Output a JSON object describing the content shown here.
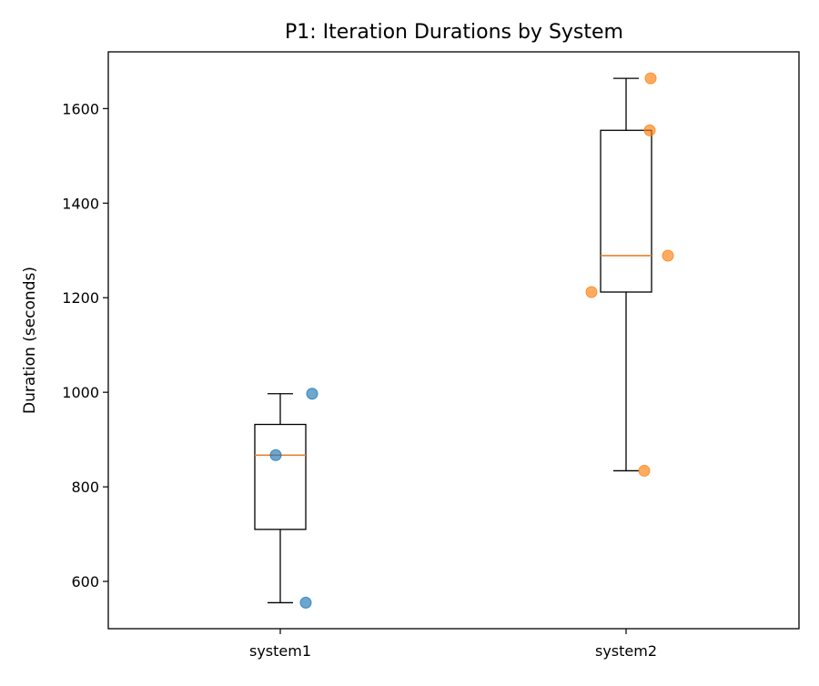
{
  "chart_data": {
    "type": "box",
    "title": "P1: Iteration Durations by System",
    "xlabel": "",
    "ylabel": "Duration (seconds)",
    "ylim": [
      500,
      1720
    ],
    "yticks": [
      600,
      800,
      1000,
      1200,
      1400,
      1600
    ],
    "categories": [
      "system1",
      "system2"
    ],
    "grid": false,
    "legend": "none",
    "series": [
      {
        "category": "system1",
        "color": "#1f77b4",
        "box": {
          "whisker_low": 555,
          "q1": 710,
          "median": 867,
          "q3": 932,
          "whisker_high": 997
        },
        "points": [
          997,
          867,
          555
        ]
      },
      {
        "category": "system2",
        "color": "#ff7f0e",
        "box": {
          "whisker_low": 834,
          "q1": 1212,
          "median": 1289,
          "q3": 1554,
          "whisker_high": 1664
        },
        "points": [
          1664,
          1554,
          1289,
          1212,
          834
        ]
      }
    ],
    "median_color": "#e8822b",
    "box_color": "#000000"
  }
}
